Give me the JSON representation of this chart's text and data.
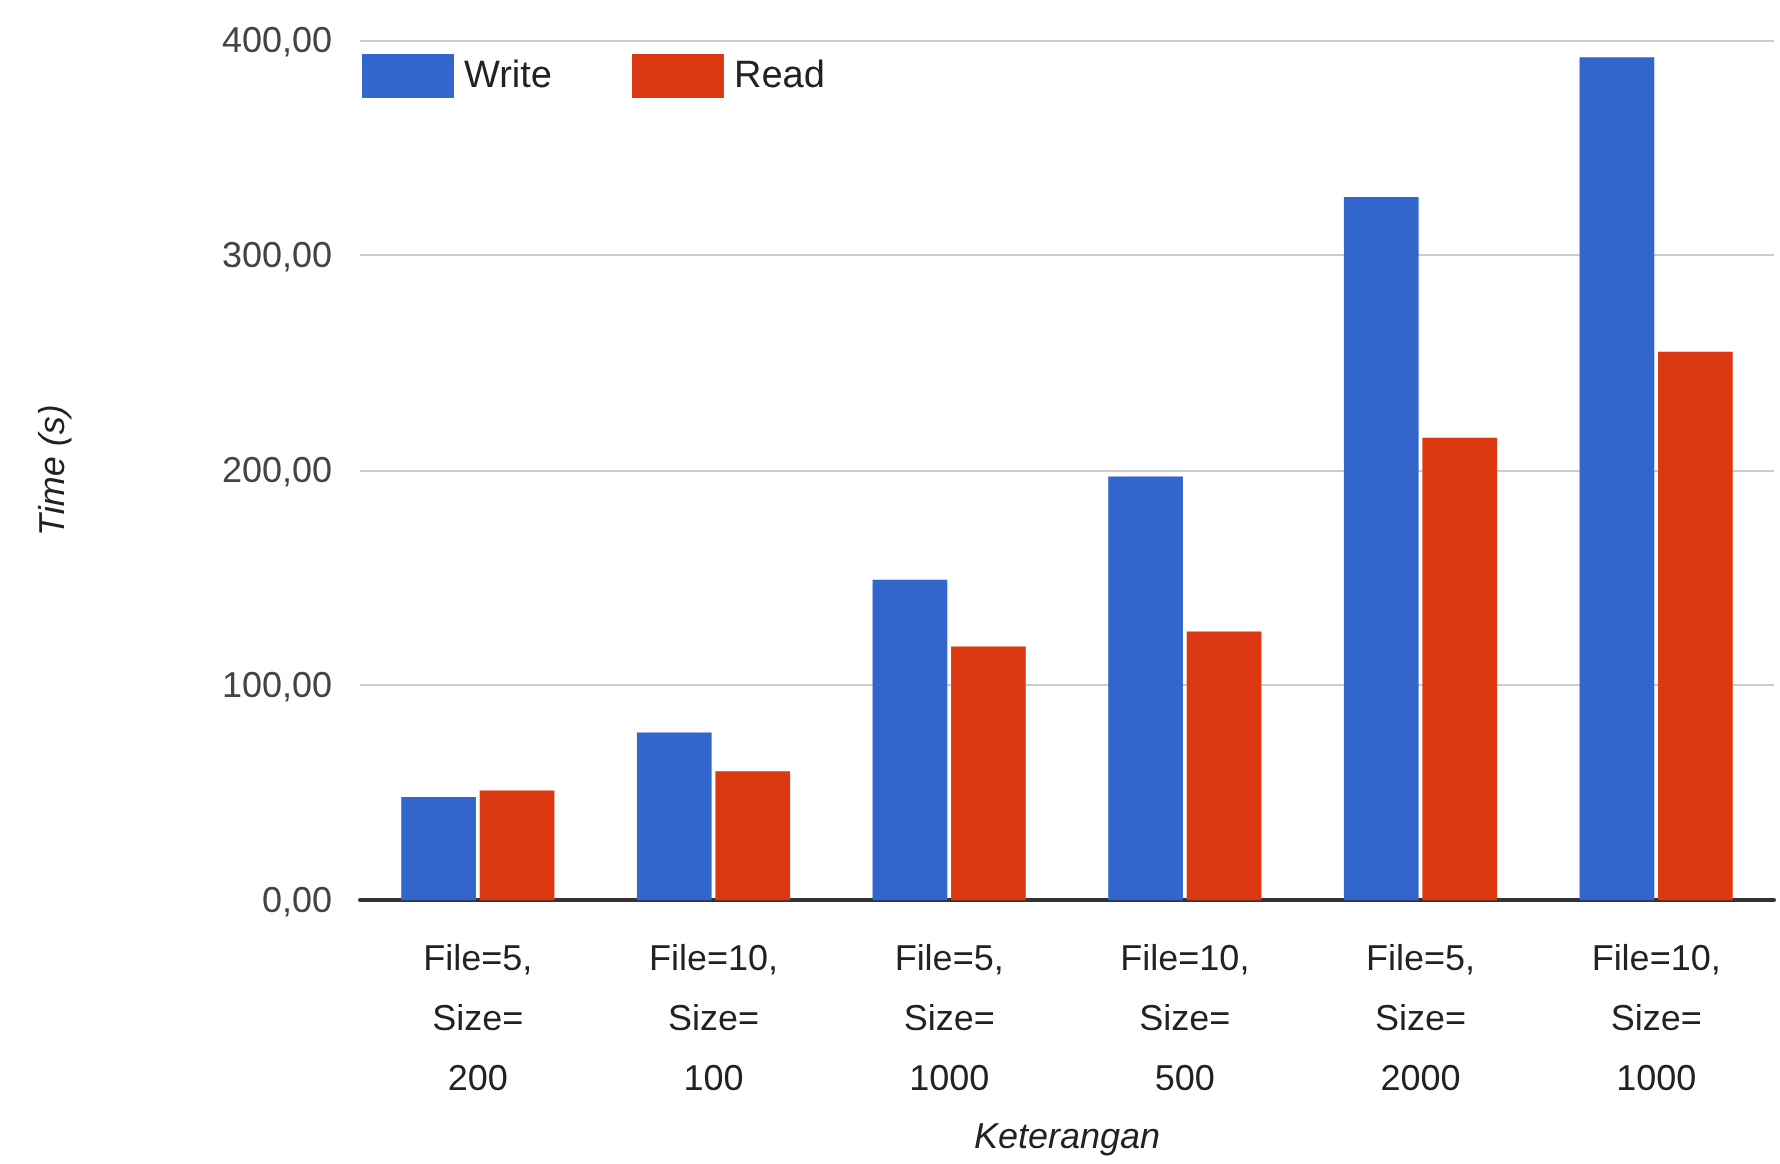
{
  "chart_data": {
    "type": "bar",
    "xlabel": "Keterangan",
    "ylabel": "Time (s)",
    "categories": [
      "File=5,\nSize=\n200",
      "File=10,\nSize=\n100",
      "File=5,\nSize=\n1000",
      "File=10,\nSize=\n500",
      "File=5,\nSize=\n2000",
      "File=10,\nSize=\n1000"
    ],
    "series": [
      {
        "name": "Write",
        "color": "#3366cc",
        "values": [
          48,
          78,
          149,
          197,
          327,
          392
        ]
      },
      {
        "name": "Read",
        "color": "#dc3912",
        "values": [
          51,
          60,
          118,
          125,
          215,
          255
        ]
      }
    ],
    "ylim": [
      0,
      400
    ],
    "yticks": [
      {
        "value": 0,
        "label": "0,00"
      },
      {
        "value": 100,
        "label": "100,00"
      },
      {
        "value": 200,
        "label": "200,00"
      },
      {
        "value": 300,
        "label": "300,00"
      },
      {
        "value": 400,
        "label": "400,00"
      }
    ],
    "grid": true,
    "legend": "top left"
  }
}
